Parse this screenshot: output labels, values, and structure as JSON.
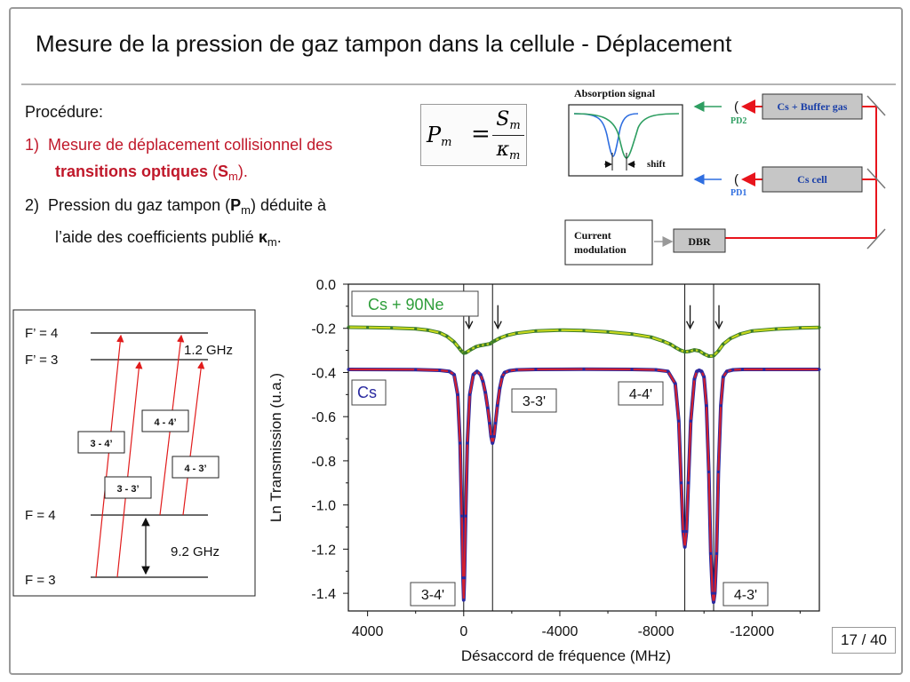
{
  "slide": {
    "title": "Mesure de la pression de gaz tampon dans la cellule - Déplacement",
    "procedure_heading": "Procédure:",
    "item1": {
      "num": "1)",
      "line1": "Mesure de déplacement collisionnel des",
      "bold": "transitions optiques",
      "paren_open": " (",
      "sym": "S",
      "sub": "m",
      "paren_close": ")."
    },
    "item2": {
      "num": "2)",
      "line1_a": "Pression du gaz tampon (",
      "sym": "P",
      "sub": "m",
      "line1_b": ") déduite à",
      "line2_a": "l’aide des coefficients publié ",
      "sym2": "κ",
      "sub2": "m",
      "line2_b": "."
    },
    "formula": {
      "lhs": "P",
      "lhs_sub": "m",
      "eq": "=",
      "num": "S",
      "num_sub": "m",
      "den": "κ",
      "den_sub": "m"
    },
    "page_number": "17 / 40"
  },
  "setup": {
    "absorption_label": "Absorption signal",
    "shift_label": "shift",
    "box_buffer": "Cs + Buffer gas",
    "box_cell": "Cs cell",
    "pd2": "PD2",
    "pd1": "PD1",
    "current_modulation_l1": "Current",
    "current_modulation_l2": "modulation",
    "dbr": "DBR",
    "colors": {
      "laser": "#e8141c",
      "green": "#2e9e61",
      "blue": "#2f6ee0",
      "box": "#c6c6c6"
    }
  },
  "levels": {
    "fp4": "F’ = 4",
    "fp3": "F’ = 3",
    "f4": "F = 4",
    "f3": "F = 3",
    "upper_split": "1.2 GHz",
    "ground_split": "9.2 GHz",
    "transitions": [
      "3 - 4’",
      "4 - 4’",
      "3 - 3’",
      "4 - 3’"
    ],
    "arrow_color": "#e11b1b"
  },
  "chart_data": {
    "type": "line",
    "xlabel": "Désaccord de fréquence (MHz)",
    "ylabel": "Ln Transmission (u.a.)",
    "x_tick_labels": [
      "4000",
      "0",
      "-4000",
      "-8000",
      "-12000"
    ],
    "x_ticks": [
      4000,
      0,
      -4000,
      -8000,
      -12000
    ],
    "y_tick_labels": [
      "0.0",
      "-0.2",
      "-0.4",
      "-0.6",
      "-0.8",
      "-1.0",
      "-1.2",
      "-1.4"
    ],
    "y_ticks": [
      0.0,
      -0.2,
      -0.4,
      -0.6,
      -0.8,
      -1.0,
      -1.2,
      -1.4
    ],
    "xlim": [
      4800,
      -14800
    ],
    "ylim": [
      -1.48,
      0.0
    ],
    "vertical_markers": [
      0,
      -1200,
      -9200,
      -10400
    ],
    "grid": false,
    "series": [
      {
        "name": "Cs + 90Ne",
        "color": "#c8d81e",
        "dot_color": "#3a7a2a",
        "baseline": -0.195,
        "x": [
          4800,
          4000,
          3000,
          2000,
          1500,
          1000,
          700,
          400,
          200,
          100,
          0,
          -100,
          -300,
          -500,
          -700,
          -900,
          -1100,
          -1200,
          -1300,
          -1500,
          -1800,
          -2200,
          -3000,
          -4000,
          -5000,
          -6000,
          -7000,
          -7800,
          -8300,
          -8600,
          -8800,
          -9000,
          -9200,
          -9400,
          -9600,
          -9800,
          -10000,
          -10200,
          -10400,
          -10600,
          -10800,
          -11100,
          -11500,
          -12000,
          -13000,
          -14000,
          -14800
        ],
        "y": [
          -0.195,
          -0.196,
          -0.198,
          -0.202,
          -0.208,
          -0.22,
          -0.236,
          -0.262,
          -0.288,
          -0.302,
          -0.312,
          -0.31,
          -0.296,
          -0.284,
          -0.278,
          -0.274,
          -0.27,
          -0.262,
          -0.256,
          -0.244,
          -0.232,
          -0.222,
          -0.212,
          -0.208,
          -0.21,
          -0.216,
          -0.226,
          -0.24,
          -0.258,
          -0.272,
          -0.286,
          -0.298,
          -0.306,
          -0.304,
          -0.298,
          -0.302,
          -0.316,
          -0.326,
          -0.324,
          -0.302,
          -0.272,
          -0.246,
          -0.226,
          -0.212,
          -0.203,
          -0.198,
          -0.196
        ]
      },
      {
        "name": "Cs",
        "color": "#d22030",
        "dot_color": "#2a2aa0",
        "baseline": -0.385,
        "x": [
          4800,
          2000,
          1000,
          600,
          400,
          250,
          150,
          80,
          30,
          0,
          -30,
          -80,
          -150,
          -250,
          -400,
          -550,
          -700,
          -800,
          -900,
          -1000,
          -1080,
          -1140,
          -1200,
          -1260,
          -1320,
          -1400,
          -1500,
          -1600,
          -1700,
          -1900,
          -2200,
          -3000,
          -5000,
          -7000,
          -8000,
          -8500,
          -8800,
          -8950,
          -9050,
          -9130,
          -9200,
          -9270,
          -9350,
          -9450,
          -9600,
          -9700,
          -9800,
          -9900,
          -10000,
          -10100,
          -10200,
          -10280,
          -10350,
          -10400,
          -10450,
          -10520,
          -10600,
          -10700,
          -10800,
          -10950,
          -11200,
          -11600,
          -12500,
          -14800
        ],
        "y": [
          -0.386,
          -0.387,
          -0.39,
          -0.395,
          -0.41,
          -0.5,
          -0.72,
          -1.05,
          -1.33,
          -1.43,
          -1.33,
          -1.05,
          -0.72,
          -0.5,
          -0.41,
          -0.395,
          -0.41,
          -0.44,
          -0.49,
          -0.56,
          -0.63,
          -0.69,
          -0.72,
          -0.69,
          -0.63,
          -0.55,
          -0.47,
          -0.42,
          -0.4,
          -0.392,
          -0.388,
          -0.386,
          -0.385,
          -0.386,
          -0.388,
          -0.395,
          -0.45,
          -0.62,
          -0.9,
          -1.12,
          -1.19,
          -1.12,
          -0.9,
          -0.62,
          -0.43,
          -0.395,
          -0.39,
          -0.395,
          -0.42,
          -0.55,
          -0.85,
          -1.22,
          -1.4,
          -1.44,
          -1.4,
          -1.22,
          -0.85,
          -0.55,
          -0.42,
          -0.395,
          -0.388,
          -0.386,
          -0.386,
          -0.386
        ]
      }
    ],
    "legend_entries": [
      "Cs + 90Ne",
      "Cs"
    ],
    "annotations": [
      "3-3'",
      "4-4'",
      "3-4'",
      "4-3'"
    ]
  }
}
